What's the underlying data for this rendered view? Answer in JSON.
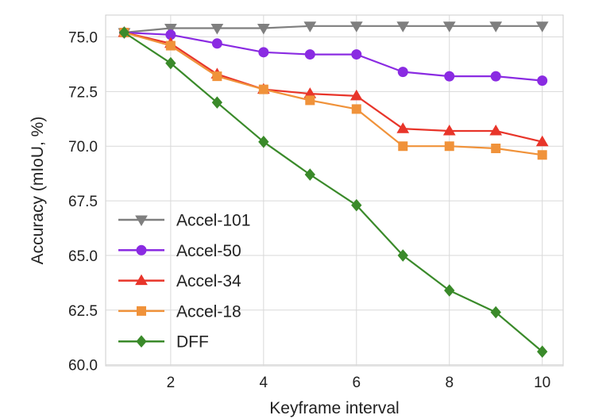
{
  "chart_data": {
    "type": "line",
    "xlabel": "Keyframe interval",
    "ylabel": "Accuracy (mIoU, %)",
    "xlim": [
      0.6,
      10.45
    ],
    "ylim": [
      59.95,
      76.0
    ],
    "xticks": [
      2,
      4,
      6,
      8,
      10
    ],
    "yticks": [
      60.0,
      62.5,
      65.0,
      67.5,
      70.0,
      72.5,
      75.0
    ],
    "ytick_labels": [
      "60.0",
      "62.5",
      "65.0",
      "67.5",
      "70.0",
      "72.5",
      "75.0"
    ],
    "grid": true,
    "legend_position": "lower-left",
    "x": [
      1,
      2,
      3,
      4,
      5,
      6,
      7,
      8,
      9,
      10
    ],
    "series": [
      {
        "name": "Accel-101",
        "color": "#7f7f7f",
        "marker": "triangle-down",
        "values": [
          75.2,
          75.4,
          75.4,
          75.4,
          75.5,
          75.5,
          75.5,
          75.5,
          75.5,
          75.5
        ]
      },
      {
        "name": "Accel-50",
        "color": "#8a2be2",
        "marker": "circle",
        "values": [
          75.2,
          75.1,
          74.7,
          74.3,
          74.2,
          74.2,
          73.4,
          73.2,
          73.2,
          73.0
        ]
      },
      {
        "name": "Accel-34",
        "color": "#e8352a",
        "marker": "triangle-up",
        "values": [
          75.2,
          74.7,
          73.3,
          72.6,
          72.4,
          72.3,
          70.8,
          70.7,
          70.7,
          70.2
        ]
      },
      {
        "name": "Accel-18",
        "color": "#f0923a",
        "marker": "square",
        "values": [
          75.2,
          74.6,
          73.2,
          72.6,
          72.1,
          71.7,
          70.0,
          70.0,
          69.9,
          69.6
        ]
      },
      {
        "name": "DFF",
        "color": "#3a8a2a",
        "marker": "diamond",
        "values": [
          75.2,
          73.8,
          72.0,
          70.2,
          68.7,
          67.3,
          65.0,
          63.4,
          62.4,
          60.6
        ]
      }
    ]
  }
}
